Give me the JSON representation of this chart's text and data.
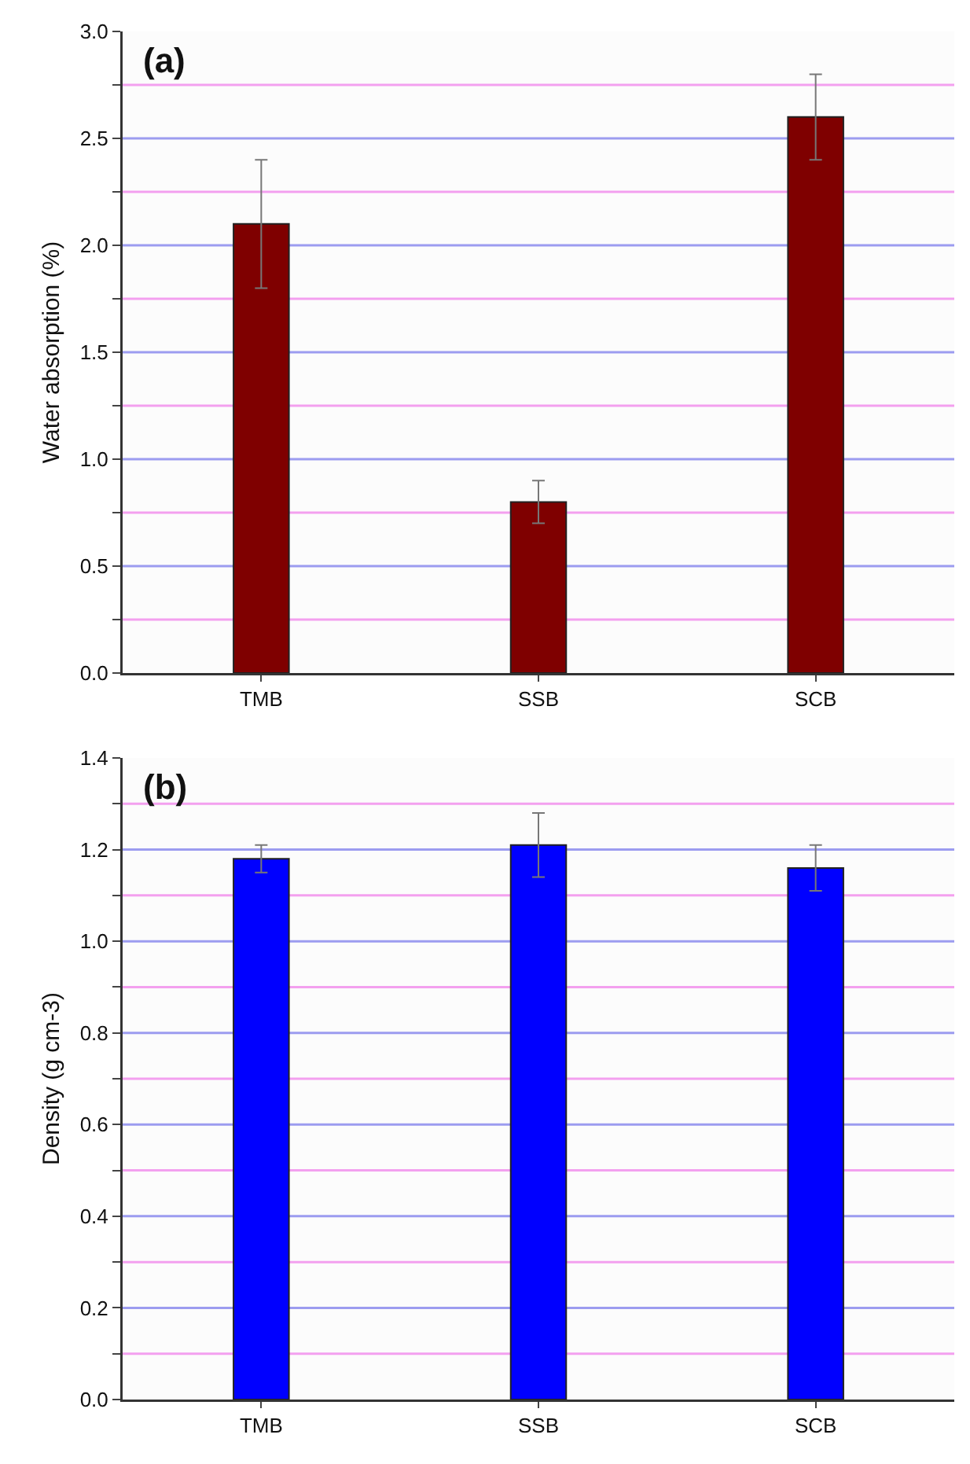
{
  "chart_data": [
    {
      "type": "bar",
      "title": "(a)",
      "ylabel": "Water absorption (%)",
      "categories": [
        "TMB",
        "SSB",
        "SCB"
      ],
      "series": [
        {
          "color": "#7f0000",
          "values": [
            2.1,
            0.8,
            2.6
          ],
          "errors": [
            0.3,
            0.1,
            0.2
          ]
        }
      ],
      "ylim": [
        0,
        3.0
      ],
      "yticks": [
        {
          "value": 0,
          "label": "0.0"
        },
        {
          "value": 0.25,
          "label": null
        },
        {
          "value": 0.5,
          "label": "0.5"
        },
        {
          "value": 0.75,
          "label": null
        },
        {
          "value": 1,
          "label": "1.0"
        },
        {
          "value": 1.25,
          "label": null
        },
        {
          "value": 1.5,
          "label": "1.5"
        },
        {
          "value": 1.75,
          "label": null
        },
        {
          "value": 2,
          "label": "2.0"
        },
        {
          "value": 2.25,
          "label": null
        },
        {
          "value": 2.5,
          "label": "2.5"
        },
        {
          "value": 2.75,
          "label": null
        },
        {
          "value": 3,
          "label": "3.0"
        }
      ],
      "grid": "y"
    },
    {
      "type": "bar",
      "title": "(b)",
      "ylabel": "Density (g cm-3)",
      "categories": [
        "TMB",
        "SSB",
        "SCB"
      ],
      "series": [
        {
          "color": "#0000ff",
          "values": [
            1.18,
            1.21,
            1.16
          ],
          "errors": [
            0.03,
            0.07,
            0.05
          ]
        }
      ],
      "ylim": [
        0,
        1.4
      ],
      "yticks": [
        {
          "value": 0,
          "label": "0.0"
        },
        {
          "value": 0.1,
          "label": null
        },
        {
          "value": 0.2,
          "label": "0.2"
        },
        {
          "value": 0.3,
          "label": null
        },
        {
          "value": 0.4,
          "label": "0.4"
        },
        {
          "value": 0.5,
          "label": null
        },
        {
          "value": 0.6,
          "label": "0.6"
        },
        {
          "value": 0.7,
          "label": null
        },
        {
          "value": 0.8,
          "label": "0.8"
        },
        {
          "value": 0.9,
          "label": null
        },
        {
          "value": 1.0,
          "label": "1.0"
        },
        {
          "value": 1.1,
          "label": null
        },
        {
          "value": 1.2,
          "label": "1.2"
        },
        {
          "value": 1.3,
          "label": null
        },
        {
          "value": 1.4,
          "label": "1.4"
        }
      ],
      "grid": "y"
    }
  ]
}
